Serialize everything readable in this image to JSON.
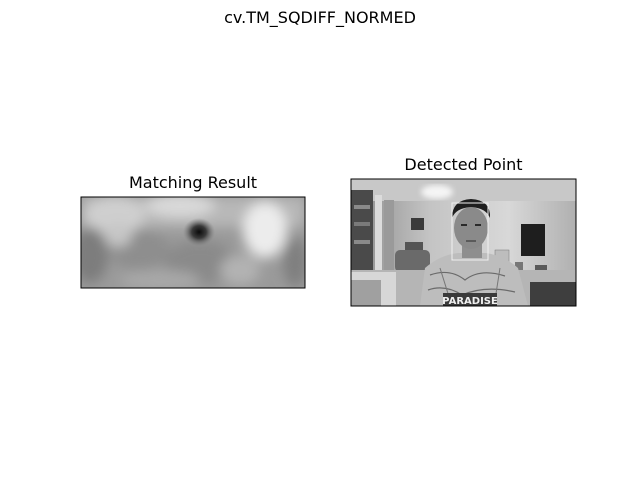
{
  "figure": {
    "suptitle": "cv.TM_SQDIFF_NORMED"
  },
  "chart_data": [
    {
      "type": "heatmap",
      "title": "Matching Result",
      "colormap": "gray",
      "axes_visible": false,
      "grid": false,
      "description_note": "grayscale match score map; darkest minimum near center-right"
    },
    {
      "type": "image",
      "title": "Detected Point",
      "colormap": "gray",
      "axes_visible": false,
      "grid": false,
      "shirt_text": "PARADISE"
    }
  ]
}
